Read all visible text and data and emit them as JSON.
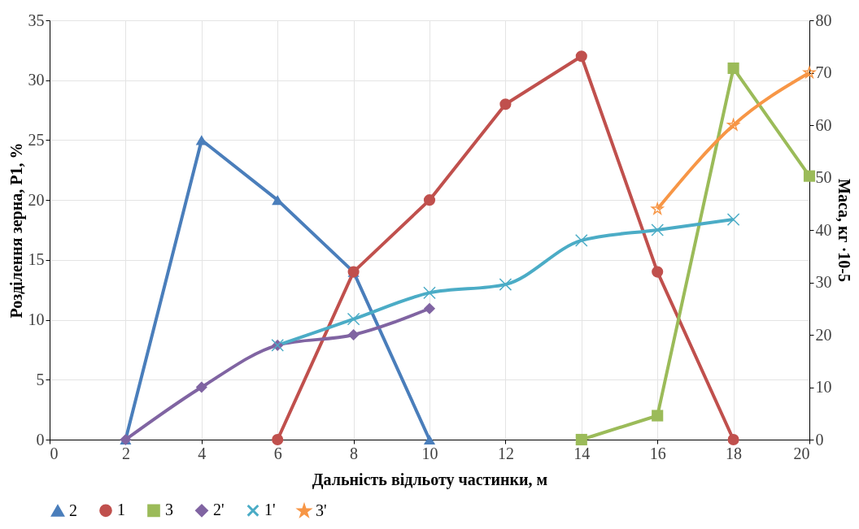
{
  "chart_data": {
    "type": "line",
    "xlabel": "Дальність відльоту частинки, м",
    "ylabel": "Розділення зерна, Р1, %",
    "y2label": "Маса, кг ·10-5",
    "xlim": [
      0,
      20
    ],
    "xticks": [
      0,
      2,
      4,
      6,
      8,
      10,
      12,
      14,
      16,
      18,
      20
    ],
    "ylim": [
      0,
      35
    ],
    "yticks": [
      0,
      5,
      10,
      15,
      20,
      25,
      30,
      35
    ],
    "y2lim": [
      0,
      80
    ],
    "y2ticks": [
      0,
      10,
      20,
      30,
      40,
      50,
      60,
      70,
      80
    ],
    "grid": true,
    "legend": "bottom",
    "series": [
      {
        "name": "2",
        "color": "#4a7ebb",
        "marker": "triangle",
        "x": [
          2,
          4,
          6,
          8,
          10
        ],
        "values": [
          0,
          25,
          20,
          14,
          0
        ]
      },
      {
        "name": "1",
        "color": "#c0504d",
        "marker": "circle",
        "x": [
          6,
          8,
          10,
          12,
          14,
          16,
          18
        ],
        "values": [
          0,
          14,
          20,
          28,
          32,
          14,
          0
        ]
      },
      {
        "name": "3",
        "color": "#9bbb59",
        "marker": "square",
        "x": [
          14,
          16,
          18,
          20
        ],
        "values": [
          0,
          2,
          31,
          22
        ]
      },
      {
        "name": "2'",
        "color": "#8064a2",
        "marker": "diamond",
        "axis": "y2",
        "x": [
          2,
          4,
          6,
          8,
          10
        ],
        "values": [
          0,
          10,
          18,
          20,
          25
        ]
      },
      {
        "name": "1'",
        "color": "#4bacc6",
        "marker": "cross",
        "axis": "y2",
        "x": [
          6,
          8,
          10,
          12,
          14,
          16,
          18
        ],
        "values": [
          18,
          23,
          28,
          29.6,
          38,
          40,
          42
        ]
      },
      {
        "name": "3'",
        "color": "#f79646",
        "marker": "star",
        "axis": "y2",
        "x": [
          16,
          18,
          20
        ],
        "values": [
          44,
          60,
          70
        ]
      }
    ]
  }
}
